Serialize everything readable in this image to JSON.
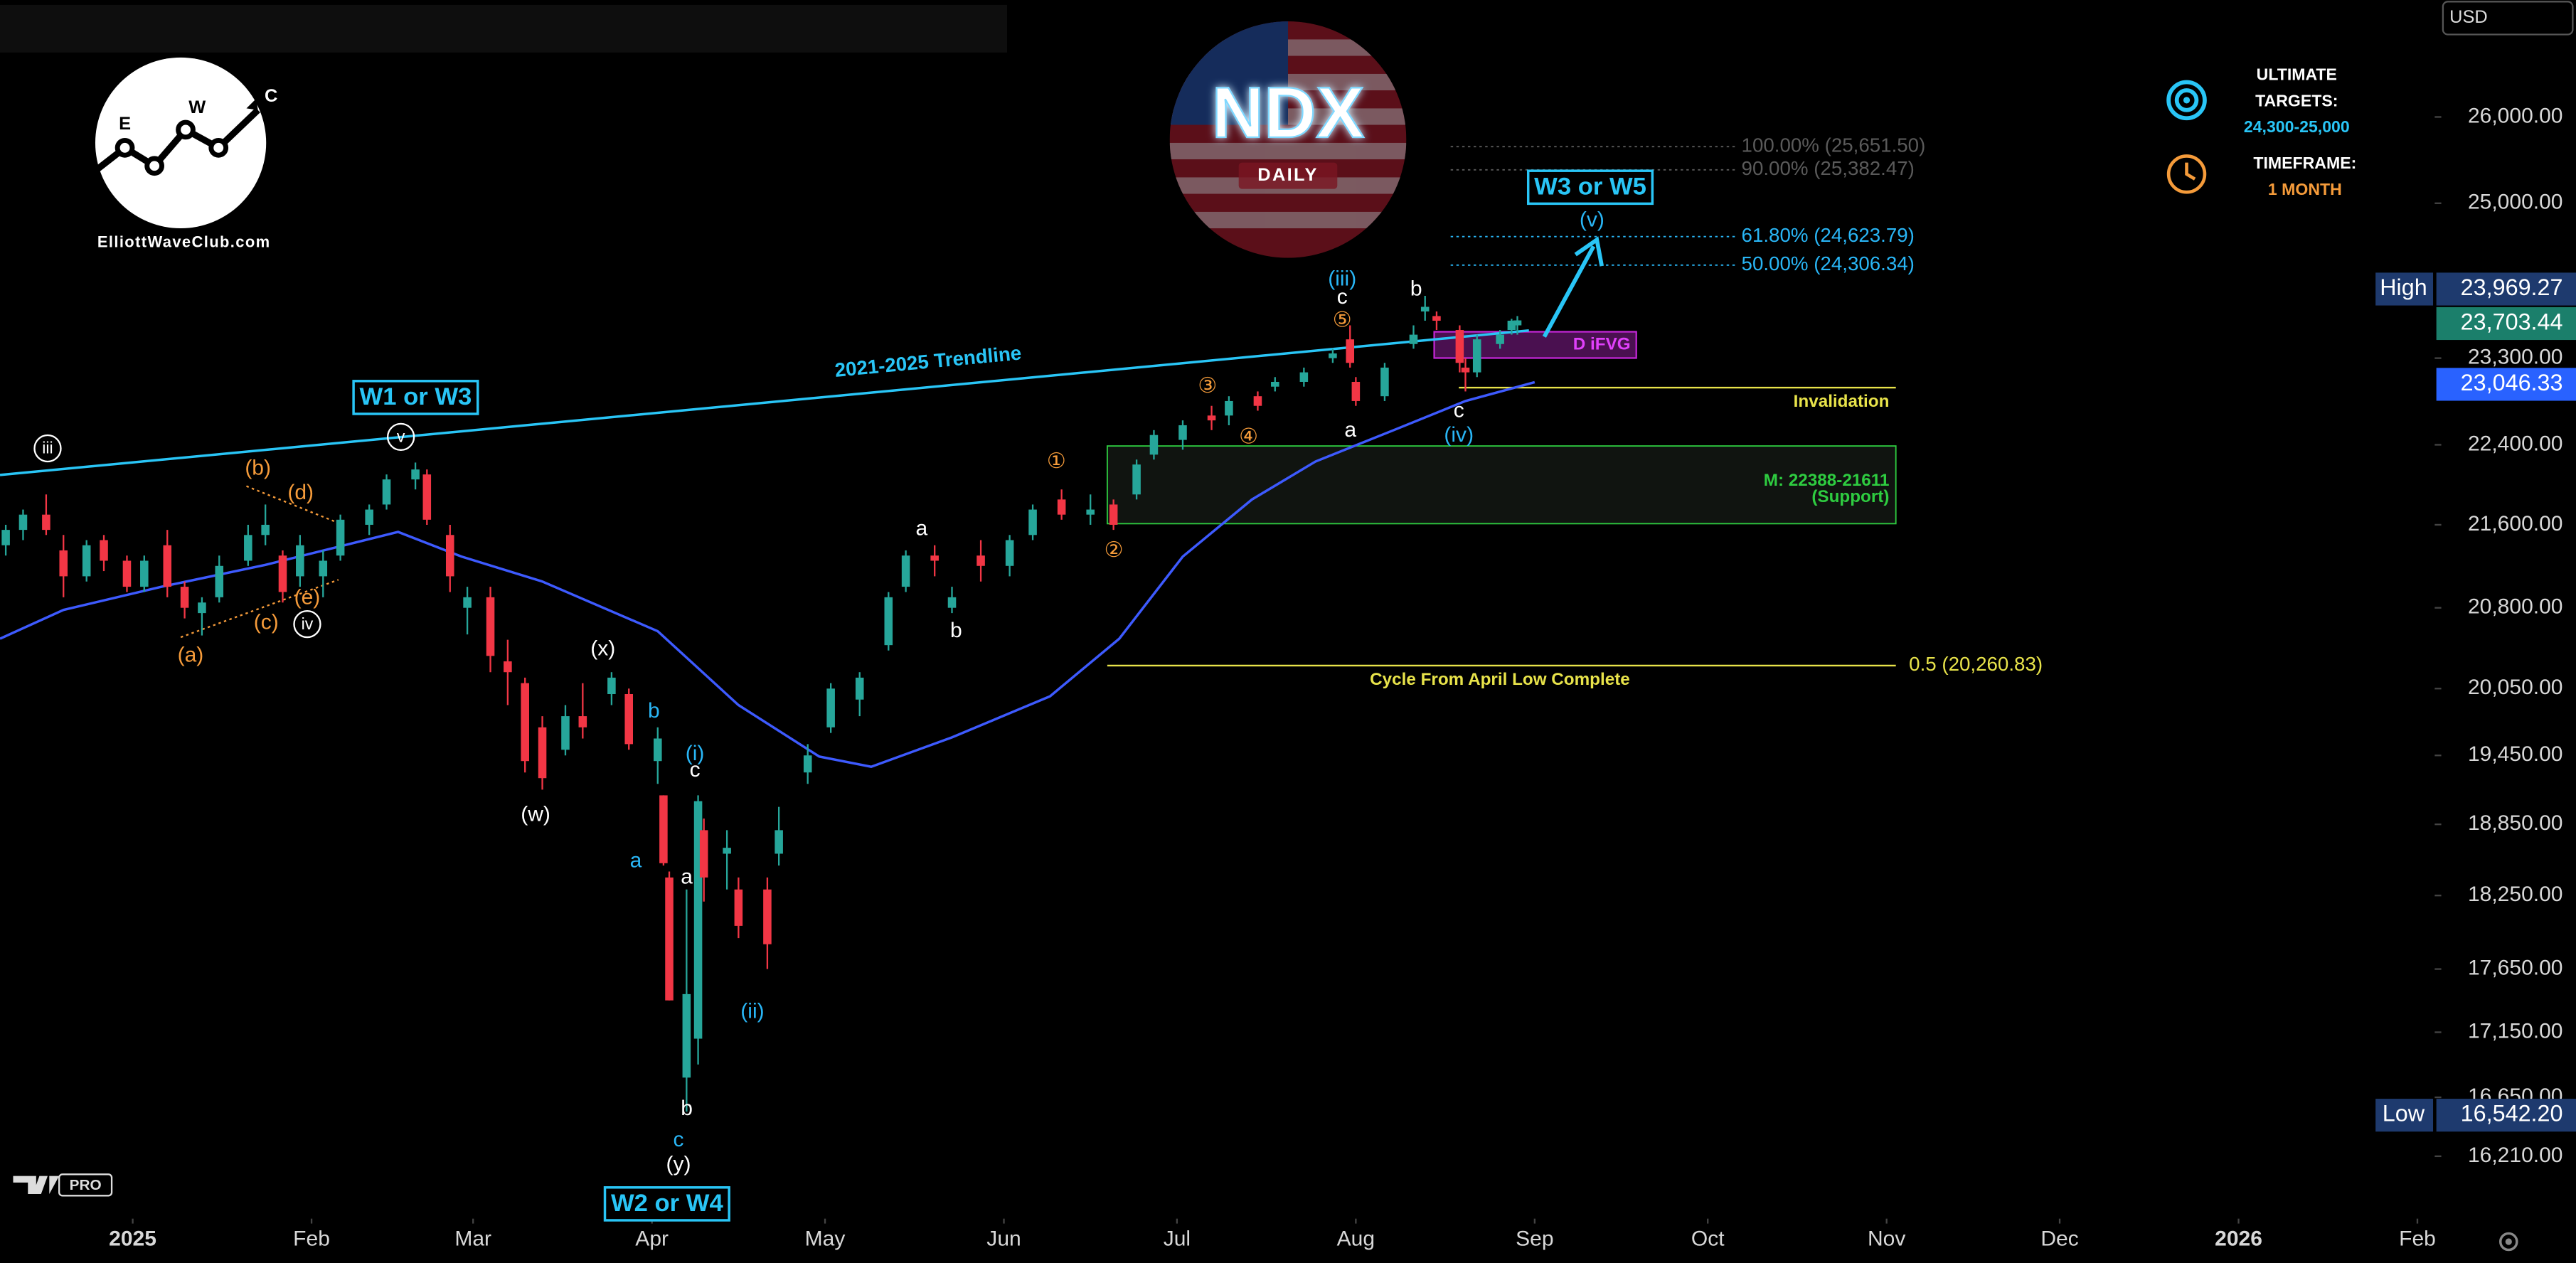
{
  "chart_data": {
    "type": "candlestick",
    "ylog": true,
    "ylim": [
      15780,
      27420
    ],
    "yticks": [
      {
        "value": 26000,
        "label": "26,000.00"
      },
      {
        "value": 25000,
        "label": "25,000.00"
      },
      {
        "value": 23300,
        "label": "23,300.00"
      },
      {
        "value": 22400,
        "label": "22,400.00"
      },
      {
        "value": 21600,
        "label": "21,600.00"
      },
      {
        "value": 20800,
        "label": "20,800.00"
      },
      {
        "value": 20050,
        "label": "20,050.00"
      },
      {
        "value": 19450,
        "label": "19,450.00"
      },
      {
        "value": 18850,
        "label": "18,850.00"
      },
      {
        "value": 18250,
        "label": "18,250.00"
      },
      {
        "value": 17650,
        "label": "17,650.00"
      },
      {
        "value": 17150,
        "label": "17,150.00"
      },
      {
        "value": 16650,
        "label": "16,650.00"
      },
      {
        "value": 16210,
        "label": "16,210.00"
      }
    ],
    "xlim": [
      "2024-12-09",
      "2026-02-04"
    ],
    "xticks": [
      {
        "value": "2025-01-01",
        "label": "2025"
      },
      {
        "value": "2025-02-01",
        "label": "Feb"
      },
      {
        "value": "2025-03-01",
        "label": "Mar"
      },
      {
        "value": "2025-04-01",
        "label": "Apr"
      },
      {
        "value": "2025-05-01",
        "label": "May"
      },
      {
        "value": "2025-06-01",
        "label": "Jun"
      },
      {
        "value": "2025-07-01",
        "label": "Jul"
      },
      {
        "value": "2025-08-01",
        "label": "Aug"
      },
      {
        "value": "2025-09-01",
        "label": "Sep"
      },
      {
        "value": "2025-10-01",
        "label": "Oct"
      },
      {
        "value": "2025-11-01",
        "label": "Nov"
      },
      {
        "value": "2025-12-01",
        "label": "Dec"
      },
      {
        "value": "2026-01-01",
        "label": "2026"
      },
      {
        "value": "2026-02-01",
        "label": "Feb"
      }
    ],
    "up_color": "#26a69a",
    "down_color": "#f23645",
    "candles": [
      {
        "x": "2024-12-10",
        "open": 21400,
        "high": 21600,
        "low": 21300,
        "close": 21550
      },
      {
        "x": "2024-12-13",
        "open": 21550,
        "high": 21750,
        "low": 21450,
        "close": 21700
      },
      {
        "x": "2024-12-17",
        "open": 21700,
        "high": 21900,
        "low": 21500,
        "close": 21550
      },
      {
        "x": "2024-12-20",
        "open": 21350,
        "high": 21500,
        "low": 20900,
        "close": 21100
      },
      {
        "x": "2024-12-24",
        "open": 21100,
        "high": 21450,
        "low": 21050,
        "close": 21400
      },
      {
        "x": "2024-12-27",
        "open": 21450,
        "high": 21500,
        "low": 21150,
        "close": 21250
      },
      {
        "x": "2024-12-31",
        "open": 21250,
        "high": 21300,
        "low": 20950,
        "close": 21000
      },
      {
        "x": "2025-01-03",
        "open": 21000,
        "high": 21300,
        "low": 20950,
        "close": 21250
      },
      {
        "x": "2025-01-07",
        "open": 21400,
        "high": 21550,
        "low": 20900,
        "close": 21000
      },
      {
        "x": "2025-01-10",
        "open": 21000,
        "high": 21050,
        "low": 20700,
        "close": 20800
      },
      {
        "x": "2025-01-13",
        "open": 20750,
        "high": 20900,
        "low": 20540,
        "close": 20850
      },
      {
        "x": "2025-01-16",
        "open": 20900,
        "high": 21300,
        "low": 20850,
        "close": 21200
      },
      {
        "x": "2025-01-21",
        "open": 21250,
        "high": 21600,
        "low": 21200,
        "close": 21500
      },
      {
        "x": "2025-01-24",
        "open": 21500,
        "high": 21800,
        "low": 21400,
        "close": 21600
      },
      {
        "x": "2025-01-27",
        "open": 21300,
        "high": 21350,
        "low": 20850,
        "close": 20950
      },
      {
        "x": "2025-01-30",
        "open": 21100,
        "high": 21500,
        "low": 21000,
        "close": 21400
      },
      {
        "x": "2025-02-03",
        "open": 21100,
        "high": 21350,
        "low": 20900,
        "close": 21250
      },
      {
        "x": "2025-02-06",
        "open": 21300,
        "high": 21700,
        "low": 21250,
        "close": 21650
      },
      {
        "x": "2025-02-11",
        "open": 21600,
        "high": 21800,
        "low": 21500,
        "close": 21750
      },
      {
        "x": "2025-02-14",
        "open": 21800,
        "high": 22100,
        "low": 21750,
        "close": 22050
      },
      {
        "x": "2025-02-19",
        "open": 22050,
        "high": 22220,
        "low": 21950,
        "close": 22150
      },
      {
        "x": "2025-02-21",
        "open": 22100,
        "high": 22150,
        "low": 21600,
        "close": 21650
      },
      {
        "x": "2025-02-25",
        "open": 21500,
        "high": 21600,
        "low": 20950,
        "close": 21100
      },
      {
        "x": "2025-02-28",
        "open": 20800,
        "high": 21000,
        "low": 20550,
        "close": 20900
      },
      {
        "x": "2025-03-04",
        "open": 20900,
        "high": 21000,
        "low": 20200,
        "close": 20350
      },
      {
        "x": "2025-03-07",
        "open": 20300,
        "high": 20500,
        "low": 19900,
        "close": 20200
      },
      {
        "x": "2025-03-10",
        "open": 20100,
        "high": 20150,
        "low": 19300,
        "close": 19400
      },
      {
        "x": "2025-03-13",
        "open": 19700,
        "high": 19800,
        "low": 19150,
        "close": 19250
      },
      {
        "x": "2025-03-17",
        "open": 19500,
        "high": 19900,
        "low": 19450,
        "close": 19800
      },
      {
        "x": "2025-03-20",
        "open": 19800,
        "high": 20100,
        "low": 19600,
        "close": 19700
      },
      {
        "x": "2025-03-25",
        "open": 20000,
        "high": 20200,
        "low": 19900,
        "close": 20150
      },
      {
        "x": "2025-03-28",
        "open": 20000,
        "high": 20050,
        "low": 19500,
        "close": 19550
      },
      {
        "x": "2025-04-02",
        "open": 19400,
        "high": 19700,
        "low": 19200,
        "close": 19600
      },
      {
        "x": "2025-04-03",
        "open": 19100,
        "high": 19100,
        "low": 18500,
        "close": 18520
      },
      {
        "x": "2025-04-04",
        "open": 18400,
        "high": 18450,
        "low": 17400,
        "close": 17400
      },
      {
        "x": "2025-04-07",
        "open": 16800,
        "high": 18300,
        "low": 16542.2,
        "close": 17450
      },
      {
        "x": "2025-04-09",
        "open": 17100,
        "high": 19100,
        "low": 16900,
        "close": 19050
      },
      {
        "x": "2025-04-10",
        "open": 18800,
        "high": 18900,
        "low": 18200,
        "close": 18400
      },
      {
        "x": "2025-04-14",
        "open": 18600,
        "high": 18800,
        "low": 18300,
        "close": 18650
      },
      {
        "x": "2025-04-16",
        "open": 18300,
        "high": 18400,
        "low": 17900,
        "close": 18000
      },
      {
        "x": "2025-04-21",
        "open": 18300,
        "high": 18400,
        "low": 17650,
        "close": 17850
      },
      {
        "x": "2025-04-23",
        "open": 18600,
        "high": 19000,
        "low": 18500,
        "close": 18800
      },
      {
        "x": "2025-04-28",
        "open": 19300,
        "high": 19550,
        "low": 19200,
        "close": 19450
      },
      {
        "x": "2025-05-02",
        "open": 19700,
        "high": 20100,
        "low": 19650,
        "close": 20050
      },
      {
        "x": "2025-05-07",
        "open": 19950,
        "high": 20200,
        "low": 19800,
        "close": 20150
      },
      {
        "x": "2025-05-12",
        "open": 20450,
        "high": 20950,
        "low": 20400,
        "close": 20900
      },
      {
        "x": "2025-05-15",
        "open": 21000,
        "high": 21350,
        "low": 20950,
        "close": 21300
      },
      {
        "x": "2025-05-20",
        "open": 21300,
        "high": 21400,
        "low": 21100,
        "close": 21250
      },
      {
        "x": "2025-05-23",
        "open": 20800,
        "high": 21000,
        "low": 20750,
        "close": 20900
      },
      {
        "x": "2025-05-28",
        "open": 21300,
        "high": 21450,
        "low": 21050,
        "close": 21200
      },
      {
        "x": "2025-06-02",
        "open": 21200,
        "high": 21500,
        "low": 21100,
        "close": 21450
      },
      {
        "x": "2025-06-06",
        "open": 21500,
        "high": 21800,
        "low": 21450,
        "close": 21750
      },
      {
        "x": "2025-06-11",
        "open": 21850,
        "high": 21950,
        "low": 21650,
        "close": 21700
      },
      {
        "x": "2025-06-16",
        "open": 21700,
        "high": 21900,
        "low": 21600,
        "close": 21750
      },
      {
        "x": "2025-06-20",
        "open": 21800,
        "high": 21850,
        "low": 21550,
        "close": 21600
      },
      {
        "x": "2025-06-24",
        "open": 21900,
        "high": 22250,
        "low": 21850,
        "close": 22200
      },
      {
        "x": "2025-06-27",
        "open": 22300,
        "high": 22550,
        "low": 22250,
        "close": 22500
      },
      {
        "x": "2025-07-02",
        "open": 22450,
        "high": 22650,
        "low": 22350,
        "close": 22600
      },
      {
        "x": "2025-07-07",
        "open": 22700,
        "high": 22800,
        "low": 22550,
        "close": 22650
      },
      {
        "x": "2025-07-10",
        "open": 22700,
        "high": 22900,
        "low": 22600,
        "close": 22850
      },
      {
        "x": "2025-07-15",
        "open": 22900,
        "high": 22950,
        "low": 22750,
        "close": 22800
      },
      {
        "x": "2025-07-18",
        "open": 23000,
        "high": 23100,
        "low": 22950,
        "close": 23050
      },
      {
        "x": "2025-07-23",
        "open": 23050,
        "high": 23200,
        "low": 23000,
        "close": 23150
      },
      {
        "x": "2025-07-28",
        "open": 23300,
        "high": 23400,
        "low": 23250,
        "close": 23350
      },
      {
        "x": "2025-07-31",
        "open": 23500,
        "high": 23650,
        "low": 23200,
        "close": 23250
      },
      {
        "x": "2025-08-01",
        "open": 23050,
        "high": 23100,
        "low": 22800,
        "close": 22850
      },
      {
        "x": "2025-08-06",
        "open": 22900,
        "high": 23250,
        "low": 22850,
        "close": 23200
      },
      {
        "x": "2025-08-11",
        "open": 23450,
        "high": 23650,
        "low": 23400,
        "close": 23550
      },
      {
        "x": "2025-08-13",
        "open": 23800,
        "high": 23969.27,
        "low": 23700,
        "close": 23850
      },
      {
        "x": "2025-08-15",
        "open": 23750,
        "high": 23800,
        "low": 23600,
        "close": 23700
      },
      {
        "x": "2025-08-19",
        "open": 23600,
        "high": 23650,
        "low": 23150,
        "close": 23250
      },
      {
        "x": "2025-08-20",
        "open": 23200,
        "high": 23300,
        "low": 22950,
        "close": 23150
      },
      {
        "x": "2025-08-22",
        "open": 23150,
        "high": 23550,
        "low": 23100,
        "close": 23500
      },
      {
        "x": "2025-08-26",
        "open": 23450,
        "high": 23600,
        "low": 23400,
        "close": 23550
      },
      {
        "x": "2025-08-28",
        "open": 23600,
        "high": 23720,
        "low": 23550,
        "close": 23700
      },
      {
        "x": "2025-08-29",
        "open": 23650,
        "high": 23750,
        "low": 23550,
        "close": 23703.44
      }
    ],
    "moving_average": {
      "color": "#3d5afe",
      "x": [
        "2024-12-09",
        "2024-12-20",
        "2025-01-06",
        "2025-01-24",
        "2025-02-16",
        "2025-02-27",
        "2025-03-13",
        "2025-04-02",
        "2025-04-16",
        "2025-04-30",
        "2025-05-09",
        "2025-05-23",
        "2025-06-09",
        "2025-06-21",
        "2025-07-02",
        "2025-07-14",
        "2025-07-25",
        "2025-08-08",
        "2025-08-20",
        "2025-09-01"
      ],
      "values": [
        20510,
        20780,
        21000,
        21210,
        21530,
        21290,
        21050,
        20580,
        19900,
        19440,
        19350,
        19610,
        19980,
        20510,
        21290,
        21850,
        22230,
        22560,
        22850,
        23046.33
      ]
    },
    "trendline": {
      "label": "2021-2025 Trendline",
      "color": "#29c5f6",
      "x": [
        "2024-12-09",
        "2025-08-31"
      ],
      "values": [
        22095,
        23595
      ]
    },
    "levels": [
      {
        "label": "100.00% (25,651.50)",
        "value": 25651.5,
        "color": "#5a5a5a"
      },
      {
        "label": "90.00% (25,382.47)",
        "value": 25382.47,
        "color": "#5a5a5a"
      },
      {
        "label": "61.80% (24,623.79)",
        "value": 24623.79,
        "color": "#29b6f6"
      },
      {
        "label": "50.00% (24,306.34)",
        "value": 24306.34,
        "color": "#29b6f6"
      }
    ],
    "cycle_level": {
      "label": "0.5 (20,260.83)",
      "value": 20260.83,
      "caption": "Cycle From April Low Complete",
      "color": "#e8e34a"
    },
    "invalidation": {
      "label": "Invalidation",
      "value": 22990,
      "color": "#e8e34a"
    },
    "support_zone": {
      "label": "M: 22388-21611",
      "sublabel": "(Support)",
      "high": 22388,
      "low": 21611,
      "color": "#2ecc40"
    },
    "fvg": {
      "label": "D iFVG",
      "color": "#c026d3"
    },
    "price_tags": [
      {
        "label": "High",
        "value": 23969.27,
        "value_label": "23,969.27",
        "color": "#1e3a6e"
      },
      {
        "value": 23703.44,
        "value_label": "23,703.44",
        "color": "#1b7f6b"
      },
      {
        "value": 23046.33,
        "value_label": "23,046.33",
        "color": "#2962ff"
      },
      {
        "label": "Low",
        "value": 16542.2,
        "value_label": "16,542.20",
        "color": "#1e3a6e"
      }
    ],
    "annotations": [
      {
        "text": "iii",
        "color": "#ffffff",
        "shape": "circle"
      },
      {
        "text": "(b)",
        "color": "#f59b3a"
      },
      {
        "text": "(d)",
        "color": "#f59b3a"
      },
      {
        "text": "(a)",
        "color": "#f59b3a"
      },
      {
        "text": "(c)",
        "color": "#f59b3a"
      },
      {
        "text": "(e)",
        "color": "#f59b3a"
      },
      {
        "text": "iv",
        "color": "#ffffff",
        "shape": "circle"
      },
      {
        "text": "v",
        "color": "#ffffff",
        "shape": "circle"
      },
      {
        "text": "W1 or W3",
        "color": "#29c5f6",
        "shape": "box"
      },
      {
        "text": "(x)",
        "color": "#ffffff"
      },
      {
        "text": "b",
        "color": "#29b6f6"
      },
      {
        "text": "(w)",
        "color": "#ffffff"
      },
      {
        "text": "(i)",
        "color": "#29b6f6"
      },
      {
        "text": "c",
        "color": "#ffffff"
      },
      {
        "text": "a",
        "color": "#29b6f6"
      },
      {
        "text": "a",
        "color": "#ffffff"
      },
      {
        "text": "b",
        "color": "#ffffff"
      },
      {
        "text": "c",
        "color": "#29b6f6"
      },
      {
        "text": "(y)",
        "color": "#ffffff"
      },
      {
        "text": "W2 or W4",
        "color": "#29c5f6",
        "shape": "box"
      },
      {
        "text": "(ii)",
        "color": "#29b6f6"
      },
      {
        "text": "a",
        "color": "#ffffff"
      },
      {
        "text": "b",
        "color": "#ffffff"
      },
      {
        "text": "①",
        "color": "#f59b3a"
      },
      {
        "text": "②",
        "color": "#f59b3a"
      },
      {
        "text": "③",
        "color": "#f59b3a"
      },
      {
        "text": "④",
        "color": "#f59b3a"
      },
      {
        "text": "(iii)",
        "color": "#29b6f6"
      },
      {
        "text": "c",
        "color": "#ffffff"
      },
      {
        "text": "⑤",
        "color": "#f59b3a"
      },
      {
        "text": "b",
        "color": "#ffffff"
      },
      {
        "text": "a",
        "color": "#ffffff"
      },
      {
        "text": "c",
        "color": "#ffffff"
      },
      {
        "text": "(iv)",
        "color": "#29b6f6"
      },
      {
        "text": "W3 or W5",
        "color": "#29c5f6",
        "shape": "box"
      },
      {
        "text": "(v)",
        "color": "#29b6f6"
      }
    ]
  },
  "logo": {
    "site": "ElliottWaveClub.com",
    "letters": [
      "E",
      "W",
      "C"
    ]
  },
  "badge": {
    "symbol": "NDX",
    "timeframe": "DAILY"
  },
  "panel": {
    "targets_title": [
      "ULTIMATE",
      "TARGETS:"
    ],
    "targets": "24,300-25,000",
    "timeframe_title": "TIMEFRAME:",
    "timeframe": "1 MONTH"
  },
  "currency": "USD",
  "brand": "PRO"
}
